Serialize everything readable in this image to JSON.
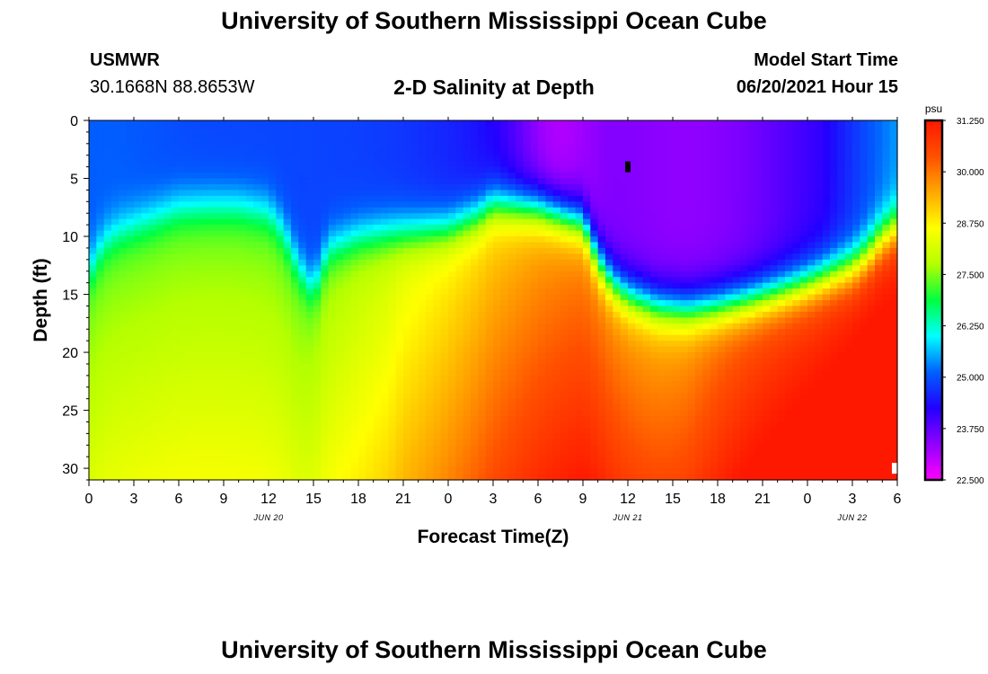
{
  "header": {
    "title": "University of Southern Mississippi Ocean Cube",
    "station": "USMWR",
    "coords": "30.1668N  88.8653W",
    "subtitle": "2-D Salinity at Depth",
    "model_start_label": "Model Start Time",
    "model_start_value": "06/20/2021 Hour 15"
  },
  "footer": {
    "title": "University of Southern Mississippi Ocean Cube"
  },
  "chart_data": {
    "type": "heatmap",
    "title": "2-D Salinity at Depth",
    "xlabel": "Forecast Time(Z)",
    "ylabel": "Depth (ft)",
    "x_range_hours": [
      0,
      54
    ],
    "ylim": [
      0,
      31
    ],
    "y_ticks": [
      "0",
      "5",
      "10",
      "15",
      "20",
      "25",
      "30"
    ],
    "y_tick_values": [
      0,
      5,
      10,
      15,
      20,
      25,
      30
    ],
    "x_tick_labels": [
      "0",
      "3",
      "6",
      "9",
      "12",
      "15",
      "18",
      "21",
      "0",
      "3",
      "6",
      "9",
      "12",
      "15",
      "18",
      "21",
      "0",
      "3",
      "6"
    ],
    "date_labels": [
      {
        "label": "JUN 20",
        "hour": 12
      },
      {
        "label": "JUN 21",
        "hour": 36
      },
      {
        "label": "JUN 22",
        "hour": 51
      }
    ],
    "colorbar": {
      "unit": "psu",
      "min": 22.5,
      "max": 31.25,
      "ticks": [
        "31.250",
        "30.000",
        "28.750",
        "27.500",
        "26.250",
        "25.000",
        "23.750",
        "22.500"
      ],
      "tick_values": [
        31.25,
        30.0,
        28.75,
        27.5,
        26.25,
        25.0,
        23.75,
        22.5
      ],
      "colors": [
        "#ff00ff",
        "#9000ff",
        "#2200ff",
        "#0060ff",
        "#00ffff",
        "#00ff40",
        "#b4ff00",
        "#ffff00",
        "#ffa800",
        "#ff5000",
        "#ff1800"
      ]
    },
    "markers": [
      {
        "hour": 36,
        "depth": 4,
        "color": "#000000"
      },
      {
        "hour": 54,
        "depth": 30,
        "color": "#ffffff"
      }
    ]
  }
}
